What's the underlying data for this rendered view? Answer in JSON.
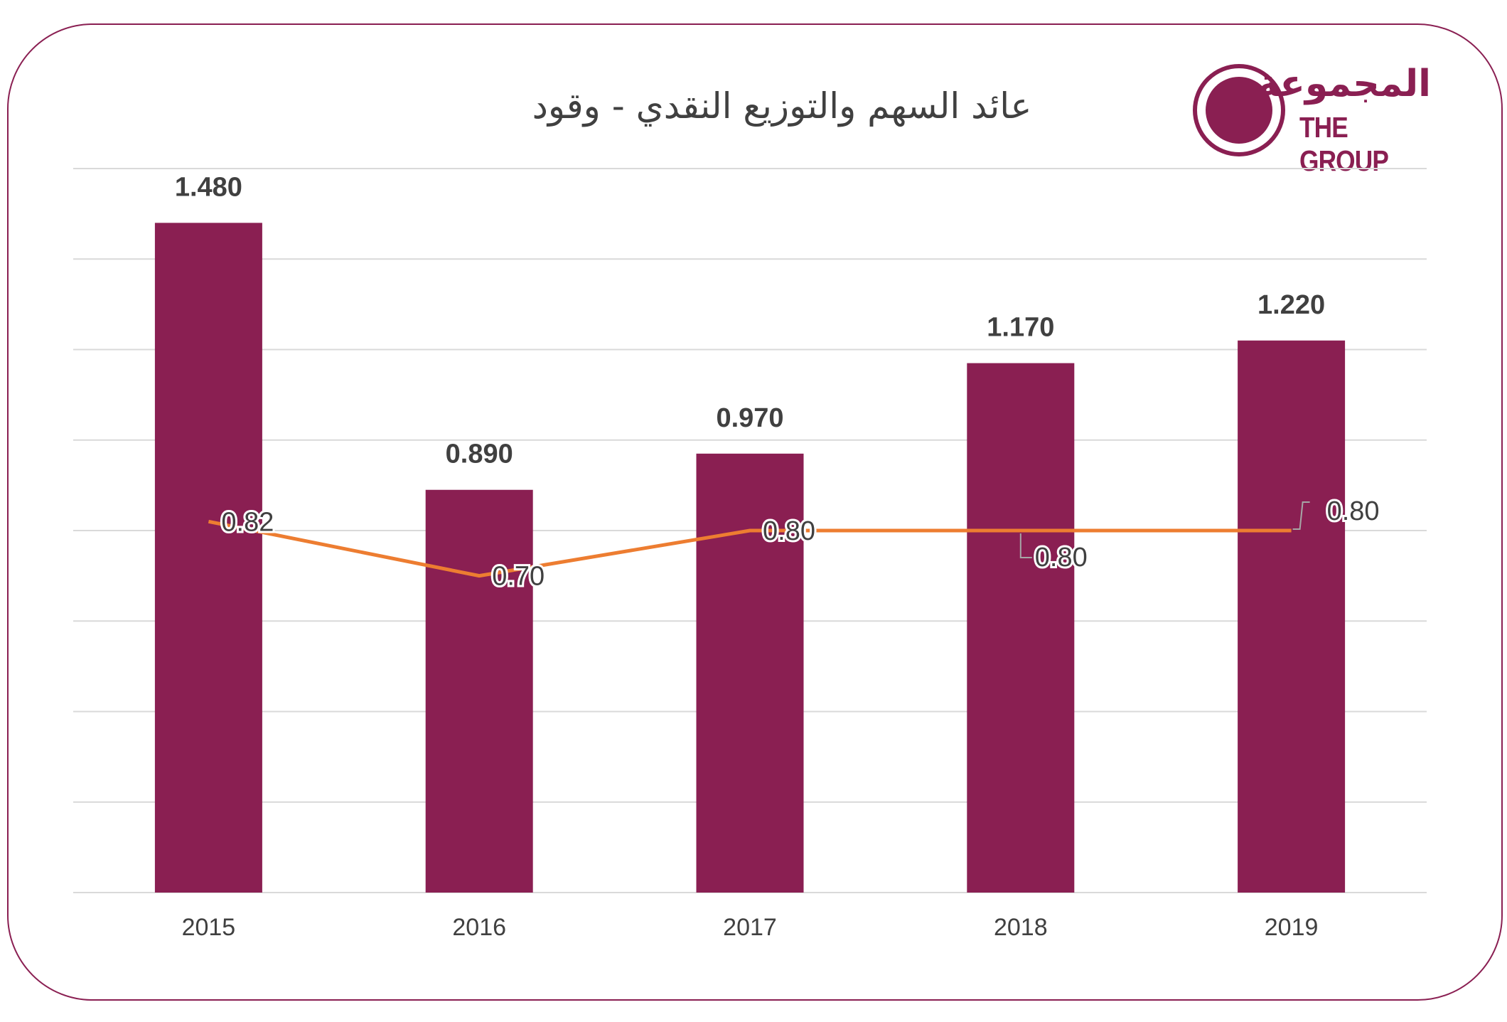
{
  "title": "عائد السهم والتوزيع النقدي - وقود",
  "logo": {
    "arabic": "المجموعة",
    "english": "THE GROUP"
  },
  "colors": {
    "bar": "#8a1f52",
    "line": "#ed7d31",
    "frame": "#8a1f52",
    "grid": "#d9d9d9",
    "text": "#404040"
  },
  "chart_data": {
    "type": "bar",
    "title": "عائد السهم والتوزيع النقدي - وقود",
    "categories": [
      "2015",
      "2016",
      "2017",
      "2018",
      "2019"
    ],
    "series": [
      {
        "type": "bar",
        "values": [
          1.48,
          0.89,
          0.97,
          1.17,
          1.22
        ],
        "labels": [
          "1.480",
          "0.890",
          "0.970",
          "1.170",
          "1.220"
        ]
      },
      {
        "type": "line",
        "values": [
          0.82,
          0.7,
          0.8,
          0.8,
          0.8
        ],
        "labels": [
          "0.82",
          "0.70",
          "0.80",
          "0.80",
          "0.80"
        ]
      }
    ],
    "ylim": [
      0,
      1.6
    ],
    "grid": true,
    "legend": "none"
  }
}
